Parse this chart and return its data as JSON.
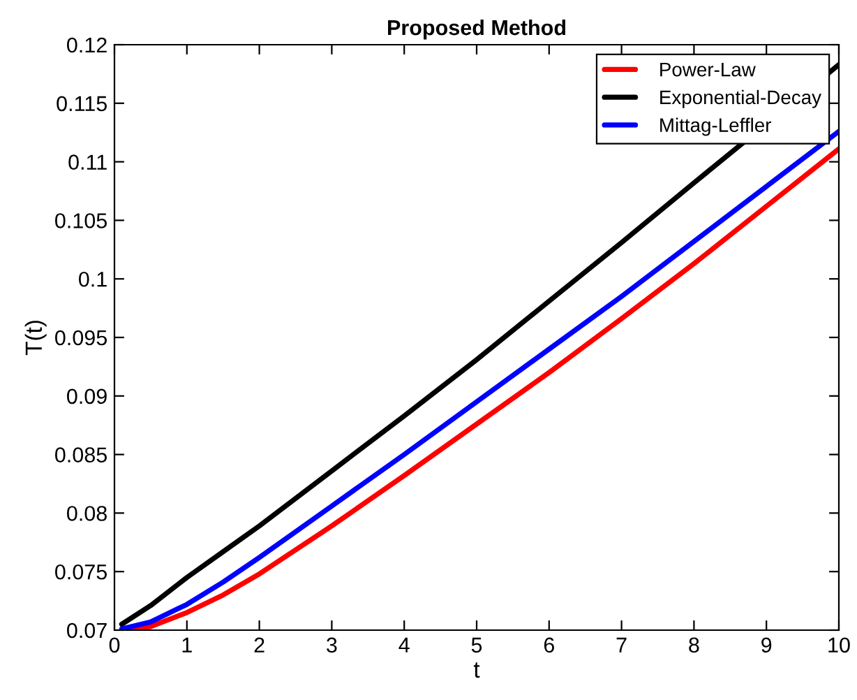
{
  "chart_data": {
    "type": "line",
    "title": "Proposed Method",
    "xlabel": "t",
    "ylabel": "T(t)",
    "x": [
      0.1,
      0.5,
      1,
      1.5,
      2,
      3,
      4,
      5,
      6,
      7,
      8,
      9,
      10
    ],
    "series": [
      {
        "name": "Power-Law",
        "color": "#ff0000",
        "values": [
          0.07,
          0.0703,
          0.0715,
          0.073,
          0.0748,
          0.0789,
          0.0832,
          0.0876,
          0.092,
          0.0966,
          0.1013,
          0.1062,
          0.1111
        ]
      },
      {
        "name": "Exponential-Decay",
        "color": "#000000",
        "x": [
          0.1,
          0.5,
          1,
          1.5,
          2,
          3,
          4,
          5,
          6,
          7,
          8,
          10
        ],
        "values": [
          0.0705,
          0.0721,
          0.0745,
          0.0767,
          0.0789,
          0.0836,
          0.0883,
          0.0931,
          0.0981,
          0.1031,
          0.1082,
          0.1183
        ]
      },
      {
        "name": "Mittag-Leffler",
        "color": "#0000ff",
        "values": [
          0.0701,
          0.0707,
          0.0722,
          0.0741,
          0.0762,
          0.0806,
          0.085,
          0.0895,
          0.094,
          0.0985,
          0.1032,
          0.1079,
          0.1126
        ]
      }
    ],
    "xlim": [
      0,
      10
    ],
    "xticks": [
      0,
      1,
      2,
      3,
      4,
      5,
      6,
      7,
      8,
      9,
      10
    ],
    "ylim": [
      0.07,
      0.12
    ],
    "yticks": [
      0.07,
      0.075,
      0.08,
      0.085,
      0.09,
      0.095,
      0.1,
      0.105,
      0.11,
      0.115,
      0.12
    ],
    "grid": false,
    "legend": "top right",
    "line_style": "solid"
  }
}
